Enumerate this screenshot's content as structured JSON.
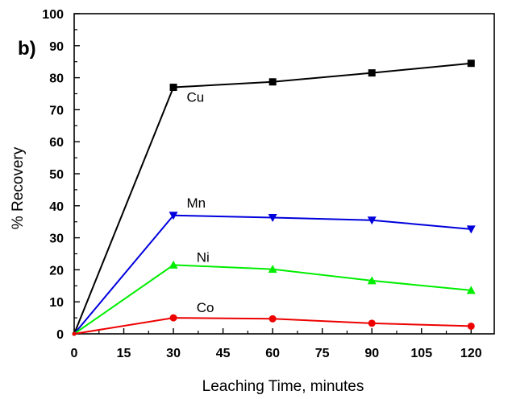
{
  "chart_data": {
    "type": "line",
    "panel_label": "b)",
    "xlabel": "Leaching Time, minutes",
    "ylabel": "% Recovery",
    "xlim": [
      0,
      127
    ],
    "ylim": [
      0,
      100
    ],
    "x_ticks": [
      0,
      15,
      30,
      45,
      60,
      75,
      90,
      105,
      120
    ],
    "y_ticks": [
      0,
      10,
      20,
      30,
      40,
      50,
      60,
      70,
      80,
      90,
      100
    ],
    "x": [
      0,
      30,
      60,
      90,
      120
    ],
    "series": [
      {
        "name": "Cu",
        "color": "#000000",
        "marker": "square",
        "values": [
          0,
          77,
          78.7,
          81.5,
          84.5
        ],
        "label_at": [
          34,
          72.5
        ]
      },
      {
        "name": "Mn",
        "color": "#0000dd",
        "marker": "triangle-down",
        "values": [
          0,
          37,
          36.3,
          35.5,
          32.7
        ],
        "label_at": [
          34,
          39.5
        ]
      },
      {
        "name": "Ni",
        "color": "#00ee00",
        "marker": "triangle-up",
        "values": [
          0,
          21.5,
          20.2,
          16.6,
          13.6
        ],
        "label_at": [
          37,
          22.5
        ]
      },
      {
        "name": "Co",
        "color": "#ee0000",
        "marker": "circle",
        "values": [
          0,
          5,
          4.7,
          3.3,
          2.4
        ],
        "label_at": [
          37,
          6.8
        ]
      }
    ]
  }
}
